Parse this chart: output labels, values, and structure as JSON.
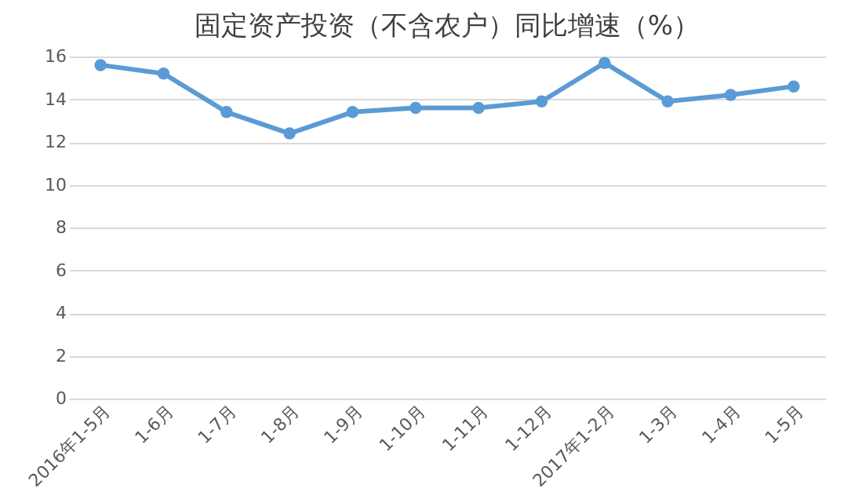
{
  "chart_data": {
    "type": "line",
    "title": "固定资产投资（不含农户）同比增速（%）",
    "categories": [
      "2016年1-5月",
      "1-6月",
      "1-7月",
      "1-8月",
      "1-9月",
      "1-10月",
      "1-11月",
      "1-12月",
      "2017年1-2月",
      "1-3月",
      "1-4月",
      "1-5月"
    ],
    "series": [
      {
        "color": "#5b9bd5",
        "values": [
          15.6,
          15.2,
          13.4,
          12.4,
          13.4,
          13.6,
          13.6,
          13.9,
          15.7,
          13.9,
          14.2,
          14.6
        ]
      }
    ],
    "ylim": [
      0,
      16
    ],
    "yticks": [
      0,
      2,
      4,
      6,
      8,
      10,
      12,
      14,
      16
    ],
    "grid": "y",
    "marker": "circle",
    "line_style": "solid"
  }
}
